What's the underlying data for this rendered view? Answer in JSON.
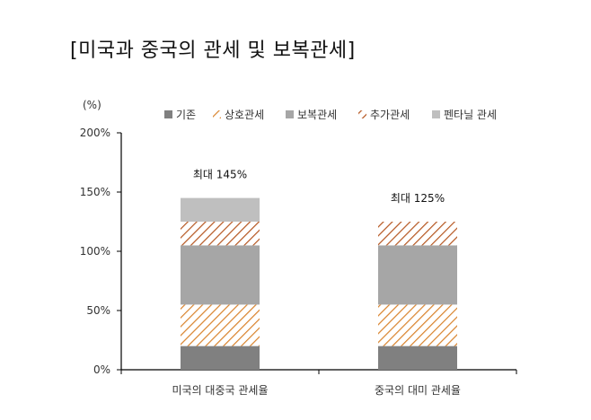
{
  "title": "[미국과 중국의 관세 및 보복관세]",
  "chart_data": {
    "type": "bar",
    "stacked": true,
    "unit_label": "(%)",
    "categories": [
      "미국의 대중국 관세율",
      "중국의 대미 관세율"
    ],
    "series": [
      {
        "name": "기존",
        "values": [
          20,
          20
        ],
        "color": "#808080",
        "pattern": "solid"
      },
      {
        "name": "상호관세",
        "values": [
          35,
          35
        ],
        "color": "#d9822b",
        "pattern": "hatch"
      },
      {
        "name": "보복관세",
        "values": [
          50,
          50
        ],
        "color": "#a6a6a6",
        "pattern": "solid"
      },
      {
        "name": "추가관세",
        "values": [
          20,
          20
        ],
        "color": "#b5551f",
        "pattern": "hatch"
      },
      {
        "name": "펜타닐 관세",
        "values": [
          20,
          0
        ],
        "color": "#bfbfbf",
        "pattern": "solid"
      }
    ],
    "annotations": [
      "최대 145%",
      "최대 125%"
    ],
    "ylim": [
      0,
      200
    ],
    "yticks": [
      0,
      50,
      100,
      150,
      200
    ],
    "ytick_labels": [
      "0%",
      "50%",
      "100%",
      "150%",
      "200%"
    ],
    "legend_position": "top",
    "grid": false
  }
}
